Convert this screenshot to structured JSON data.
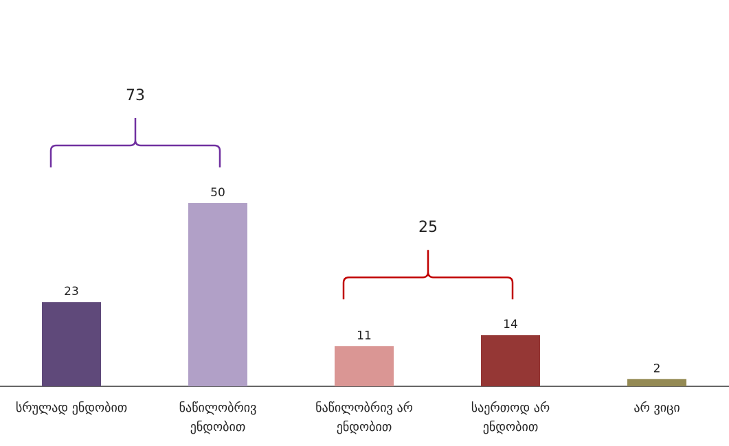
{
  "chart_data": {
    "type": "bar",
    "title": "",
    "xlabel": "",
    "ylabel": "",
    "ylim": [
      0,
      50
    ],
    "grid": false,
    "categories": [
      [
        "სრულად ენდობით"
      ],
      [
        "ნაწილობრივ",
        "ენდობით"
      ],
      [
        "ნაწილობრივ არ",
        "ენდობით"
      ],
      [
        "საერთოდ არ",
        "ენდობით"
      ],
      [
        "არ ვიცი"
      ]
    ],
    "values": [
      23,
      50,
      11,
      14,
      2
    ],
    "colors": [
      "#5f497a",
      "#b1a0c7",
      "#da9694",
      "#953735",
      "#948a54"
    ],
    "groups": [
      {
        "label": "73",
        "from": 0,
        "to": 1,
        "color": "#7030a0"
      },
      {
        "label": "25",
        "from": 2,
        "to": 3,
        "color": "#c00000"
      }
    ]
  }
}
